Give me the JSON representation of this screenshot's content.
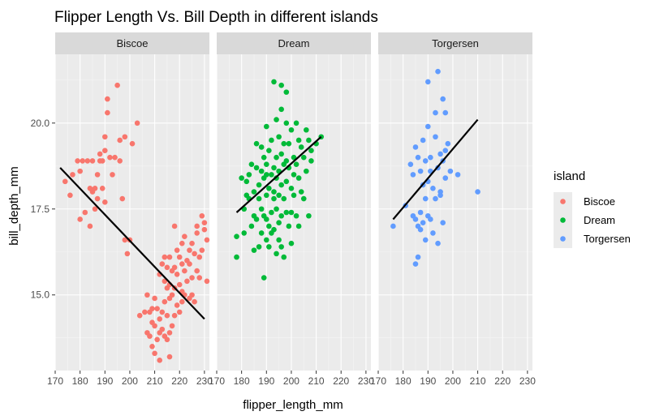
{
  "chart_data": {
    "type": "scatter",
    "title": "Flipper Length Vs. Bill Depth in different islands",
    "xlabel": "flipper_length_mm",
    "ylabel": "bill_depth_mm",
    "xlim": [
      170,
      232
    ],
    "ylim": [
      12.8,
      22.0
    ],
    "x_ticks": [
      170,
      180,
      190,
      200,
      210,
      220,
      230
    ],
    "y_ticks": [
      15.0,
      17.5,
      20.0
    ],
    "y_tick_labels": [
      "15.0",
      "17.5",
      "20.0"
    ],
    "grid": true,
    "legend": {
      "title": "island",
      "position": "right"
    },
    "series": [
      {
        "name": "Biscoe",
        "color": "#F8766D",
        "fit_line": {
          "x": [
            172,
            230
          ],
          "y": [
            18.7,
            14.3
          ]
        },
        "points": [
          [
            174,
            18.3
          ],
          [
            176,
            17.9
          ],
          [
            177,
            18.5
          ],
          [
            179,
            18.9
          ],
          [
            180,
            17.2
          ],
          [
            180,
            18.6
          ],
          [
            182,
            17.4
          ],
          [
            181,
            18.9
          ],
          [
            183,
            18.9
          ],
          [
            184,
            18.1
          ],
          [
            184,
            17.0
          ],
          [
            185,
            18.9
          ],
          [
            185,
            18.0
          ],
          [
            186,
            18.1
          ],
          [
            186,
            17.5
          ],
          [
            187,
            18.5
          ],
          [
            187,
            17.8
          ],
          [
            188,
            18.9
          ],
          [
            188,
            19.1
          ],
          [
            189,
            18.9
          ],
          [
            190,
            19.2
          ],
          [
            189,
            18.1
          ],
          [
            190,
            19.6
          ],
          [
            190,
            17.7
          ],
          [
            191,
            20.7
          ],
          [
            191,
            20.3
          ],
          [
            192,
            19.0
          ],
          [
            193,
            18.5
          ],
          [
            194,
            19.0
          ],
          [
            195,
            21.1
          ],
          [
            196,
            18.9
          ],
          [
            196,
            19.5
          ],
          [
            197,
            17.8
          ],
          [
            198,
            19.6
          ],
          [
            198,
            16.6
          ],
          [
            199,
            16.2
          ],
          [
            200,
            16.6
          ],
          [
            201,
            19.4
          ],
          [
            203,
            20.0
          ],
          [
            204,
            14.4
          ],
          [
            207,
            15.0
          ],
          [
            206,
            14.5
          ],
          [
            207,
            13.9
          ],
          [
            208,
            14.5
          ],
          [
            208,
            13.8
          ],
          [
            209,
            14.2
          ],
          [
            209,
            14.6
          ],
          [
            209,
            13.5
          ],
          [
            210,
            14.1
          ],
          [
            210,
            14.9
          ],
          [
            210,
            13.3
          ],
          [
            211,
            14.6
          ],
          [
            211,
            13.7
          ],
          [
            212,
            13.9
          ],
          [
            212,
            14.3
          ],
          [
            212,
            15.6
          ],
          [
            212,
            13.1
          ],
          [
            213,
            15.9
          ],
          [
            213,
            14.5
          ],
          [
            213,
            14.0
          ],
          [
            214,
            16.1
          ],
          [
            214,
            15.4
          ],
          [
            214,
            14.8
          ],
          [
            214,
            13.8
          ],
          [
            215,
            15.8
          ],
          [
            215,
            15.2
          ],
          [
            215,
            14.4
          ],
          [
            215,
            13.7
          ],
          [
            216,
            16.1
          ],
          [
            216,
            15.3
          ],
          [
            216,
            14.9
          ],
          [
            216,
            13.9
          ],
          [
            216,
            13.2
          ],
          [
            217,
            15.7
          ],
          [
            217,
            15.0
          ],
          [
            217,
            14.1
          ],
          [
            218,
            15.8
          ],
          [
            218,
            14.4
          ],
          [
            218,
            15.2
          ],
          [
            218,
            17.0
          ],
          [
            219,
            15.6
          ],
          [
            219,
            14.7
          ],
          [
            219,
            16.3
          ],
          [
            220,
            15.3
          ],
          [
            220,
            16.1
          ],
          [
            220,
            14.5
          ],
          [
            221,
            15.1
          ],
          [
            221,
            15.9
          ],
          [
            221,
            14.8
          ],
          [
            221,
            16.5
          ],
          [
            222,
            15.7
          ],
          [
            222,
            15.0
          ],
          [
            222,
            16.7
          ],
          [
            223,
            15.4
          ],
          [
            223,
            16.0
          ],
          [
            224,
            14.9
          ],
          [
            224,
            16.3
          ],
          [
            224,
            15.9
          ],
          [
            225,
            16.5
          ],
          [
            225,
            15.0
          ],
          [
            225,
            15.5
          ],
          [
            226,
            16.2
          ],
          [
            226,
            14.8
          ],
          [
            227,
            17.0
          ],
          [
            227,
            15.7
          ],
          [
            227,
            16.8
          ],
          [
            228,
            16.1
          ],
          [
            228,
            15.5
          ],
          [
            229,
            17.3
          ],
          [
            229,
            16.3
          ],
          [
            230,
            16.9
          ],
          [
            230,
            17.1
          ],
          [
            231,
            15.4
          ],
          [
            231,
            16.6
          ]
        ]
      },
      {
        "name": "Dream",
        "color": "#00BA38",
        "fit_line": {
          "x": [
            178,
            212
          ],
          "y": [
            17.4,
            19.6
          ]
        },
        "points": [
          [
            178,
            16.7
          ],
          [
            178,
            16.1
          ],
          [
            180,
            18.4
          ],
          [
            181,
            17.5
          ],
          [
            181,
            16.8
          ],
          [
            182,
            17.9
          ],
          [
            182,
            18.3
          ],
          [
            183,
            17.8
          ],
          [
            183,
            18.5
          ],
          [
            184,
            18.8
          ],
          [
            184,
            17.0
          ],
          [
            185,
            18.0
          ],
          [
            185,
            17.3
          ],
          [
            185,
            16.3
          ],
          [
            186,
            18.7
          ],
          [
            186,
            17.2
          ],
          [
            186,
            19.4
          ],
          [
            187,
            18.2
          ],
          [
            187,
            17.8
          ],
          [
            187,
            16.4
          ],
          [
            188,
            18.6
          ],
          [
            188,
            19.3
          ],
          [
            188,
            17.5
          ],
          [
            188,
            16.8
          ],
          [
            189,
            18.4
          ],
          [
            189,
            17.3
          ],
          [
            189,
            19.0
          ],
          [
            189,
            15.5
          ],
          [
            190,
            17.9
          ],
          [
            190,
            18.8
          ],
          [
            190,
            16.6
          ],
          [
            190,
            18.5
          ],
          [
            190,
            17.2
          ],
          [
            191,
            18.1
          ],
          [
            191,
            19.2
          ],
          [
            191,
            17.0
          ],
          [
            191,
            16.4
          ],
          [
            192,
            18.5
          ],
          [
            192,
            17.4
          ],
          [
            192,
            19.5
          ],
          [
            192,
            16.8
          ],
          [
            193,
            18.0
          ],
          [
            193,
            17.8
          ],
          [
            193,
            18.7
          ],
          [
            193,
            16.9
          ],
          [
            193,
            21.2
          ],
          [
            194,
            17.5
          ],
          [
            194,
            18.4
          ],
          [
            194,
            19.0
          ],
          [
            194,
            16.2
          ],
          [
            195,
            17.9
          ],
          [
            195,
            18.6
          ],
          [
            195,
            19.6
          ],
          [
            195,
            16.6
          ],
          [
            195,
            17.1
          ],
          [
            196,
            18.2
          ],
          [
            196,
            19.1
          ],
          [
            196,
            16.4
          ],
          [
            196,
            17.3
          ],
          [
            196,
            21.1
          ],
          [
            197,
            18.8
          ],
          [
            197,
            17.8
          ],
          [
            197,
            19.4
          ],
          [
            197,
            16.1
          ],
          [
            198,
            18.3
          ],
          [
            198,
            17.4
          ],
          [
            198,
            18.9
          ],
          [
            198,
            20.0
          ],
          [
            199,
            17.0
          ],
          [
            199,
            18.7
          ],
          [
            199,
            19.4
          ],
          [
            200,
            18.1
          ],
          [
            200,
            19.8
          ],
          [
            200,
            16.5
          ],
          [
            200,
            17.4
          ],
          [
            201,
            18.5
          ],
          [
            201,
            17.9
          ],
          [
            201,
            19.0
          ],
          [
            202,
            17.3
          ],
          [
            202,
            18.8
          ],
          [
            202,
            20.0
          ],
          [
            203,
            19.5
          ],
          [
            203,
            18.4
          ],
          [
            203,
            17.0
          ],
          [
            204,
            19.3
          ],
          [
            204,
            18.0
          ],
          [
            205,
            19.0
          ],
          [
            205,
            17.8
          ],
          [
            206,
            19.8
          ],
          [
            206,
            18.6
          ],
          [
            207,
            19.5
          ],
          [
            207,
            17.3
          ],
          [
            208,
            19.2
          ],
          [
            208,
            18.9
          ],
          [
            210,
            19.4
          ],
          [
            212,
            19.6
          ],
          [
            198,
            20.9
          ],
          [
            196,
            20.4
          ],
          [
            194,
            20.1
          ],
          [
            190,
            19.9
          ]
        ]
      },
      {
        "name": "Torgersen",
        "color": "#619CFF",
        "fit_line": {
          "x": [
            176,
            210
          ],
          "y": [
            17.2,
            20.1
          ]
        },
        "points": [
          [
            176,
            17.0
          ],
          [
            181,
            17.6
          ],
          [
            183,
            18.8
          ],
          [
            184,
            17.3
          ],
          [
            184,
            18.5
          ],
          [
            185,
            19.3
          ],
          [
            185,
            17.2
          ],
          [
            185,
            15.9
          ],
          [
            186,
            16.1
          ],
          [
            186,
            19.0
          ],
          [
            186,
            17.0
          ],
          [
            187,
            18.6
          ],
          [
            187,
            17.4
          ],
          [
            187,
            16.9
          ],
          [
            188,
            18.2
          ],
          [
            188,
            19.5
          ],
          [
            188,
            17.1
          ],
          [
            189,
            18.9
          ],
          [
            189,
            17.8
          ],
          [
            189,
            16.6
          ],
          [
            190,
            19.9
          ],
          [
            190,
            18.3
          ],
          [
            190,
            17.3
          ],
          [
            190,
            21.2
          ],
          [
            191,
            18.6
          ],
          [
            191,
            17.2
          ],
          [
            191,
            19.0
          ],
          [
            192,
            16.8
          ],
          [
            192,
            18.1
          ],
          [
            193,
            20.3
          ],
          [
            193,
            19.6
          ],
          [
            193,
            17.8
          ],
          [
            194,
            18.7
          ],
          [
            194,
            16.5
          ],
          [
            195,
            19.1
          ],
          [
            195,
            17.9
          ],
          [
            195,
            18.0
          ],
          [
            196,
            20.7
          ],
          [
            196,
            18.9
          ],
          [
            196,
            17.1
          ],
          [
            197,
            19.2
          ],
          [
            197,
            20.3
          ],
          [
            197,
            18.4
          ],
          [
            198,
            19.4
          ],
          [
            199,
            18.6
          ],
          [
            202,
            18.5
          ],
          [
            210,
            18.0
          ],
          [
            194,
            21.5
          ]
        ]
      }
    ]
  }
}
